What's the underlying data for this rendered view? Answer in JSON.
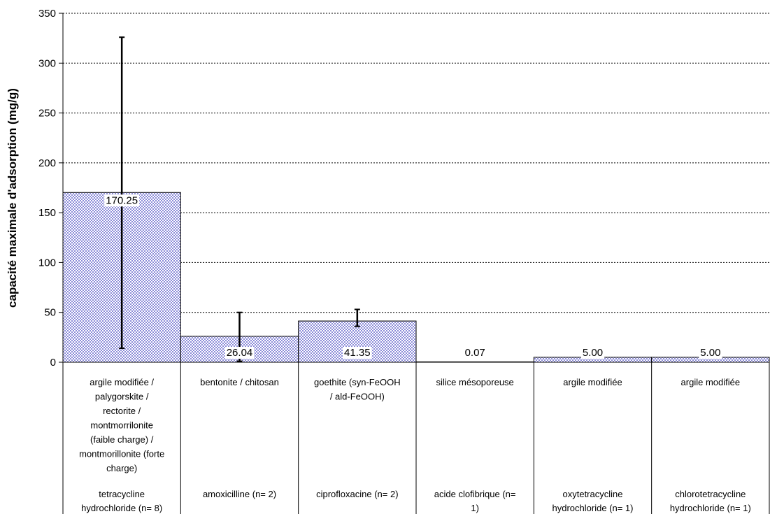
{
  "chart_data": {
    "type": "bar",
    "title": "",
    "ylabel": "capacité maximale d'adsorption (mg/g)",
    "ylim": [
      0,
      350
    ],
    "yticks": [
      0,
      50,
      100,
      150,
      200,
      250,
      300,
      350
    ],
    "grid": "horizontal dashed",
    "legend": "none",
    "bar_pattern_color": "#8c8cd9",
    "categories": [
      {
        "adsorbent": [
          "argile modifiée /",
          "palygorskite /",
          "rectorite /",
          "montmorrilonite",
          "(faible charge) /",
          "montmorillonite (forte",
          "charge)"
        ],
        "compound": [
          "tetracycline",
          "hydrochloride (n= 8)"
        ]
      },
      {
        "adsorbent": [
          "bentonite / chitosan"
        ],
        "compound": [
          "amoxicilline (n= 2)"
        ]
      },
      {
        "adsorbent": [
          "goethite (syn-FeOOH",
          "/ ald-FeOOH)"
        ],
        "compound": [
          "ciprofloxacine (n= 2)"
        ]
      },
      {
        "adsorbent": [
          "silice mésoporeuse"
        ],
        "compound": [
          "acide clofibrique (n=",
          "1)"
        ]
      },
      {
        "adsorbent": [
          "argile modifiée"
        ],
        "compound": [
          "oxytetracycline",
          "hydrochloride (n= 1)"
        ]
      },
      {
        "adsorbent": [
          "argile modifiée"
        ],
        "compound": [
          "chlorotetracycline",
          "hydrochloride (n= 1)"
        ]
      }
    ],
    "values": [
      170.25,
      26.04,
      41.35,
      0.07,
      5.0,
      5.0
    ],
    "value_labels": [
      "170.25",
      "26.04",
      "41.35",
      "0.07",
      "5.00",
      "5.00"
    ],
    "error_bars": [
      {
        "low": 14,
        "high": 326
      },
      {
        "low": 1,
        "high": 50
      },
      {
        "low": 36,
        "high": 53
      },
      null,
      null,
      null
    ]
  }
}
